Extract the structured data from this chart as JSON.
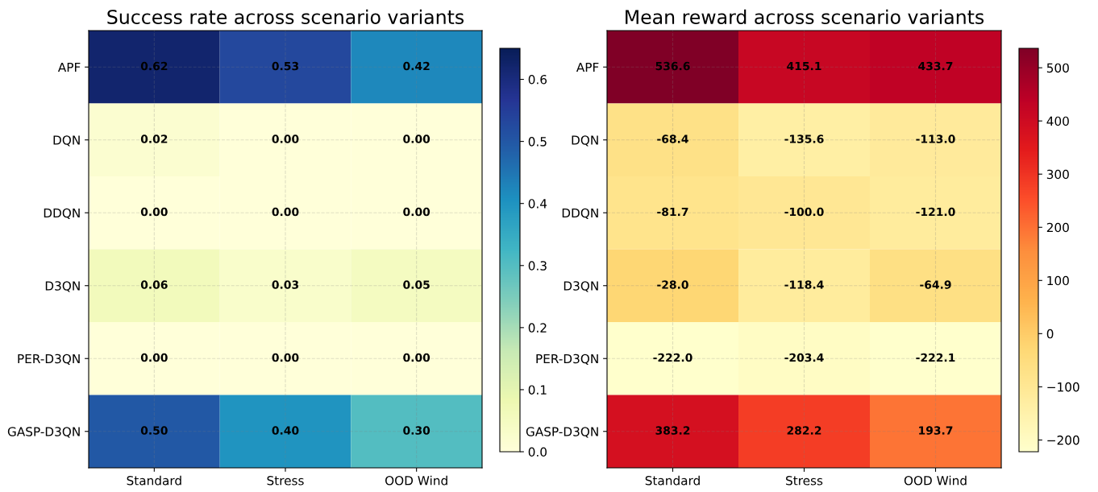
{
  "chart_data": [
    {
      "type": "heatmap",
      "title": "Success rate across scenario variants",
      "categories": [
        "Standard",
        "Stress",
        "OOD Wind"
      ],
      "y_categories": [
        "APF",
        "DQN",
        "DDQN",
        "D3QN",
        "PER-D3QN",
        "GASP-D3QN"
      ],
      "cells": [
        [
          0.62,
          0.53,
          0.42
        ],
        [
          0.02,
          0.0,
          0.0
        ],
        [
          0.0,
          0.0,
          0.0
        ],
        [
          0.06,
          0.03,
          0.05
        ],
        [
          0.0,
          0.0,
          0.0
        ],
        [
          0.5,
          0.4,
          0.3
        ]
      ],
      "cell_labels": [
        [
          "0.62",
          "0.53",
          "0.42"
        ],
        [
          "0.02",
          "0.00",
          "0.00"
        ],
        [
          "0.00",
          "0.00",
          "0.00"
        ],
        [
          "0.06",
          "0.03",
          "0.05"
        ],
        [
          "0.00",
          "0.00",
          "0.00"
        ],
        [
          "0.50",
          "0.40",
          "0.30"
        ]
      ],
      "colors": [
        "#ffffd9",
        "#edf8b1",
        "#c7e9b4",
        "#7fcdbb",
        "#41b6c4",
        "#1d91c0",
        "#225ea8",
        "#253494",
        "#081d58"
      ],
      "clim": [
        0,
        0.65
      ],
      "cticks": [
        {
          "value": 0,
          "label": "0.0"
        },
        0.1,
        0.2,
        0.3,
        0.4,
        0.5,
        0.6
      ],
      "grid": true
    },
    {
      "type": "heatmap",
      "title": "Mean reward across scenario variants",
      "categories": [
        "Standard",
        "Stress",
        "OOD Wind"
      ],
      "y_categories": [
        "APF",
        "DQN",
        "DDQN",
        "D3QN",
        "PER-D3QN",
        "GASP-D3QN"
      ],
      "cells": [
        [
          536.6,
          415.1,
          433.7
        ],
        [
          -68.4,
          -135.6,
          -113.0
        ],
        [
          -81.7,
          -100.0,
          -121.0
        ],
        [
          -28.0,
          -118.4,
          -64.9
        ],
        [
          -222.0,
          -203.4,
          -222.1
        ],
        [
          383.2,
          282.2,
          193.7
        ]
      ],
      "cell_labels": [
        [
          "536.6",
          "415.1",
          "433.7"
        ],
        [
          "-68.4",
          "-135.6",
          "-113.0"
        ],
        [
          "-81.7",
          "-100.0",
          "-121.0"
        ],
        [
          "-28.0",
          "-118.4",
          "-64.9"
        ],
        [
          "-222.0",
          "-203.4",
          "-222.1"
        ],
        [
          "383.2",
          "282.2",
          "193.7"
        ]
      ],
      "colors": [
        "#ffffcc",
        "#ffeda0",
        "#fed976",
        "#feb24c",
        "#fd8d3c",
        "#fc4e2a",
        "#e31a1c",
        "#bd0026",
        "#800026"
      ],
      "clim": [
        -222.1,
        536.6
      ],
      "cticks": [
        {
          "value": -200,
          "label": "−200"
        },
        {
          "value": -100,
          "label": "−100"
        },
        0,
        100,
        200,
        300,
        400,
        500
      ],
      "grid": true
    }
  ]
}
